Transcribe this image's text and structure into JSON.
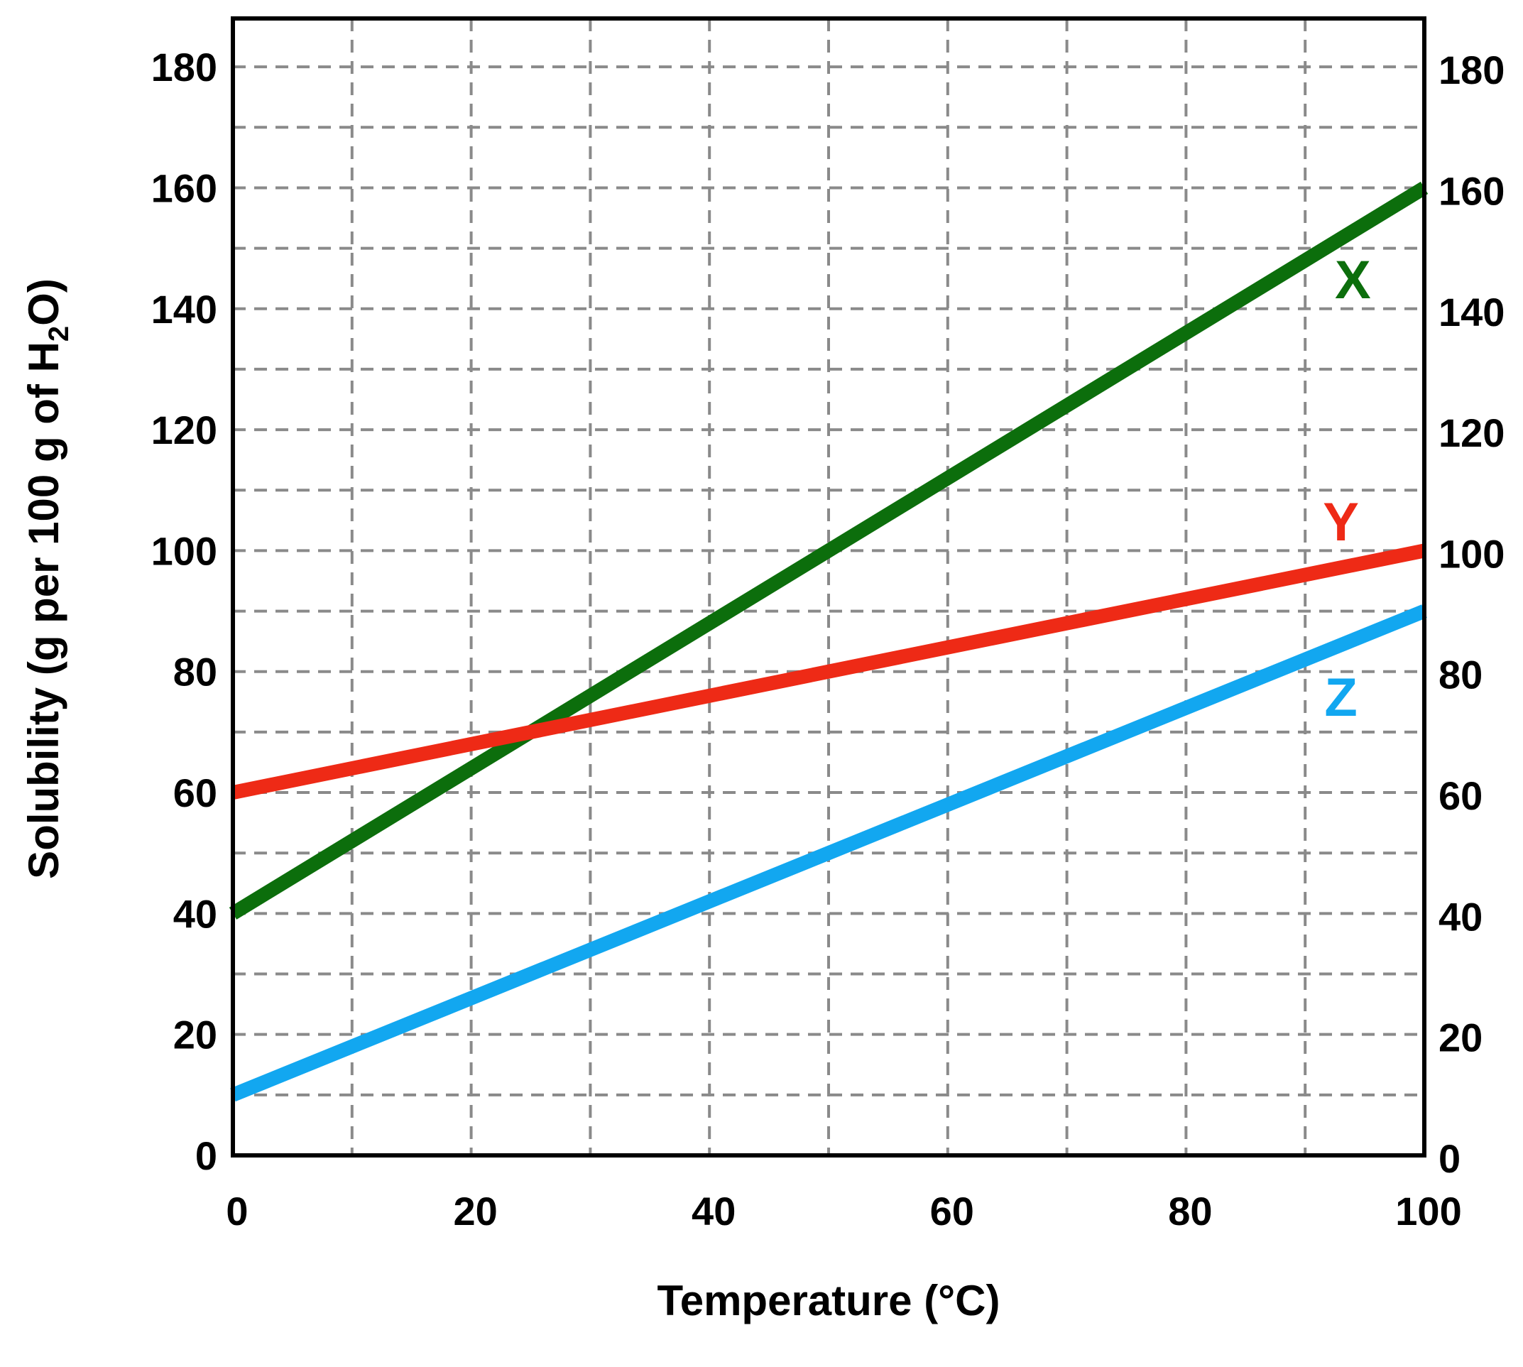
{
  "chart_data": {
    "type": "line",
    "xlabel": "Temperature (°C)",
    "ylabel_parts": {
      "before": "Solubility (g per 100 g of H",
      "subscript": "2",
      "after": "O)"
    },
    "xlim": [
      0,
      100
    ],
    "ylim": [
      0,
      180
    ],
    "x_ticks": [
      "0",
      "20",
      "40",
      "60",
      "80",
      "100"
    ],
    "y_ticks": [
      "0",
      "20",
      "40",
      "60",
      "80",
      "100",
      "120",
      "140",
      "160",
      "180"
    ],
    "y_ticks_right": true,
    "grid": {
      "major": true,
      "minor": true,
      "style": "dashed",
      "color": "#8a8a8a"
    },
    "series": [
      {
        "name": "X",
        "color": "#0c6e0c",
        "x": [
          0,
          100
        ],
        "y": [
          40,
          160
        ],
        "label_at": [
          94,
          145
        ]
      },
      {
        "name": "Y",
        "color": "#ee2a16",
        "x": [
          0,
          100
        ],
        "y": [
          60,
          100
        ],
        "label_at": [
          93,
          105
        ]
      },
      {
        "name": "Z",
        "color": "#12a7f0",
        "x": [
          0,
          100
        ],
        "y": [
          10,
          90
        ],
        "label_at": [
          93,
          76
        ]
      }
    ]
  }
}
